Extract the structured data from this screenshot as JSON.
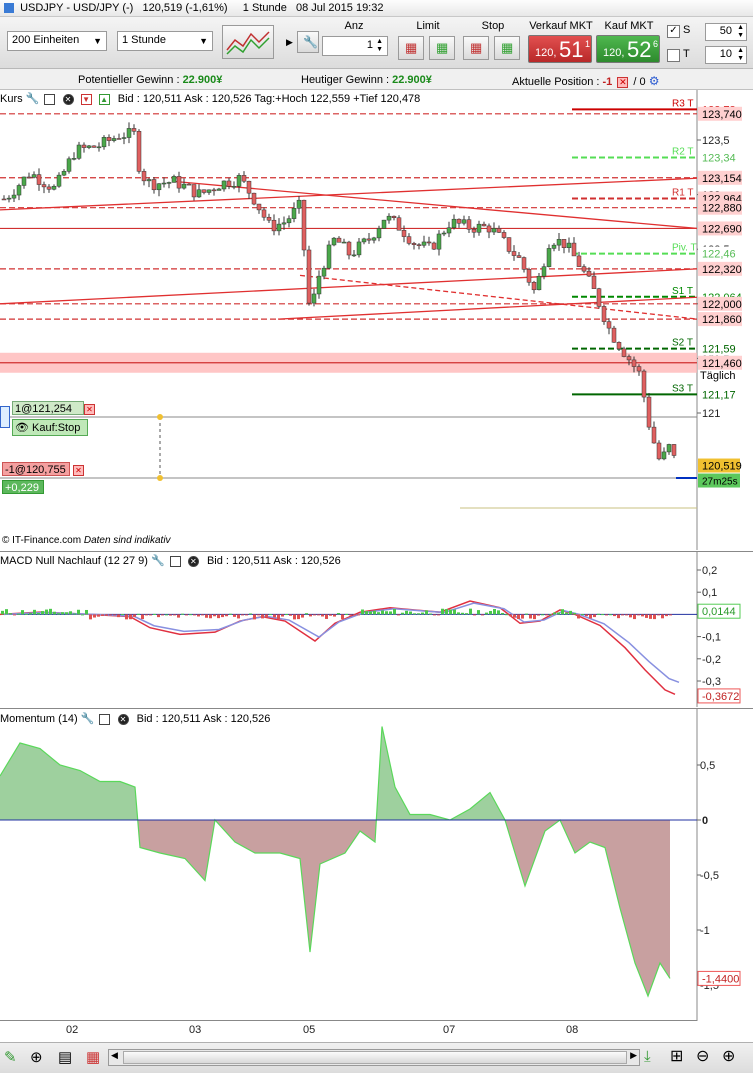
{
  "window_title": "USDJPY - USD/JPY (-)",
  "title_price": "120,519 (-1,61%)",
  "title_interval": "1 Stunde",
  "title_date": "08 Jul 2015 19:32",
  "toolbar": {
    "units_value": "200 Einheiten",
    "interval_value": "1 Stunde",
    "anz_label": "Anz",
    "anz_value": "1",
    "limit_label": "Limit",
    "stop_label": "Stop",
    "sell_label": "Verkauf MKT",
    "buy_label": "Kauf MKT",
    "sell_price_small": "120,",
    "sell_price_big": "51",
    "sell_price_sup": "1",
    "buy_price_small": "120,",
    "buy_price_big": "52",
    "buy_price_sup": "6",
    "s_label": "S",
    "s_value": "50",
    "t_label": "T",
    "t_value": "10"
  },
  "infobar": {
    "gewinn_label": "Potentieller Gewinn :",
    "gewinn_value": "22.900¥",
    "heute_label": "Heutiger Gewinn :",
    "heute_value": "22.900¥",
    "position_label": "Aktuelle Position :",
    "position_value": "-1",
    "position_extra": "/ 0"
  },
  "price_panel": {
    "title": "Kurs",
    "bid_ask": "Bid : 120,511 Ask : 120,526 Tag:+Hoch 122,559 +Tief 120,478",
    "footer": "© IT-Finance.com",
    "footer_italic": "Daten sind indikativ",
    "axis_ticks": [
      {
        "label": "123,5",
        "value": 123.5
      },
      {
        "label": "123",
        "value": 123.0
      },
      {
        "label": "122,5",
        "value": 122.5
      },
      {
        "label": "122",
        "value": 122.0
      },
      {
        "label": "121,5",
        "value": 121.5
      },
      {
        "label": "121",
        "value": 121.0
      }
    ],
    "levels": [
      {
        "name": "R3 T",
        "value": 123.78,
        "label": "123,78",
        "color": "#cc0000",
        "style": "solid",
        "bg": "#ffffff"
      },
      {
        "name": "",
        "value": 123.74,
        "label": "123,740",
        "color": "#d03030",
        "style": "dash",
        "bg": "#ffd0d0"
      },
      {
        "name": "R2 T",
        "value": 123.34,
        "label": "123,34",
        "color": "#55dd55",
        "style": "dash",
        "bg": "#ffffff"
      },
      {
        "name": "",
        "value": 123.154,
        "label": "123,154",
        "color": "#d03030",
        "style": "dash",
        "bg": "#ffd0d0"
      },
      {
        "name": "R1 T",
        "value": 122.964,
        "label": "122,964",
        "color": "#d03030",
        "style": "dash",
        "bg": "#ffd0d0"
      },
      {
        "name": "",
        "value": 122.88,
        "label": "122,880",
        "color": "#d03030",
        "style": "dash",
        "bg": "#ffd0d0"
      },
      {
        "name": "",
        "value": 122.69,
        "label": "122,690",
        "color": "#d03030",
        "style": "solid",
        "bg": "#ffd0d0"
      },
      {
        "name": "Piv. T",
        "value": 122.46,
        "label": "122,46",
        "color": "#55dd55",
        "style": "dash",
        "bg": "#ffffff"
      },
      {
        "name": "",
        "value": 122.32,
        "label": "122,320",
        "color": "#d03030",
        "style": "dash",
        "bg": "#ffd0d0"
      },
      {
        "name": "S1 T",
        "value": 122.064,
        "label": "122,064",
        "color": "#008800",
        "style": "dash",
        "bg": "#ffffff"
      },
      {
        "name": "",
        "value": 122.0,
        "label": "122,000",
        "color": "#d03030",
        "style": "dash",
        "bg": "#ffd0d0"
      },
      {
        "name": "",
        "value": 121.86,
        "label": "121,860",
        "color": "#d03030",
        "style": "dash",
        "bg": "#ffd0d0"
      },
      {
        "name": "S2 T",
        "value": 121.59,
        "label": "121,59",
        "color": "#006600",
        "style": "dash",
        "bg": "#ffffff"
      },
      {
        "name": "",
        "value": 121.46,
        "label": "121,460",
        "color": "#d03030",
        "style": "solid",
        "bg": "#ffd0d0"
      },
      {
        "name": "S3 T",
        "value": 121.17,
        "label": "121,17",
        "color": "#006600",
        "style": "solid",
        "bg": "#ffffff"
      }
    ],
    "taeglich_label": "Täglich",
    "current_price_label": "120,519",
    "countdown_label": "27m25s",
    "order_stop_qty": "1@121,254",
    "order_stop_type": "Kauf:Stop",
    "position_qty": "-1@120,755",
    "position_pl": "+0,229"
  },
  "macd_panel": {
    "title": "MACD Null Nachlauf (12 27 9)",
    "bid_ask": "Bid : 120,511 Ask : 120,526",
    "axis_ticks": [
      "0,2",
      "0,1",
      "-0,1",
      "-0,2",
      "-0,3"
    ],
    "value_label_pos": "0,0144",
    "value_label_neg": "-0,3672"
  },
  "momentum_panel": {
    "title": "Momentum (14)",
    "bid_ask": "Bid : 120,511 Ask : 120,526",
    "axis_ticks": [
      "0,5",
      "0",
      "-0,5",
      "-1",
      "-1,5"
    ],
    "value_label": "-1,4400"
  },
  "xaxis": [
    "02",
    "03",
    "05",
    "07",
    "08"
  ],
  "colors": {
    "up_candle": "#4aa84a",
    "down_candle": "#e06060",
    "resistance": "#d03030",
    "support": "#008800",
    "sell_bg": "#d94040",
    "buy_bg": "#3fa03f"
  }
}
